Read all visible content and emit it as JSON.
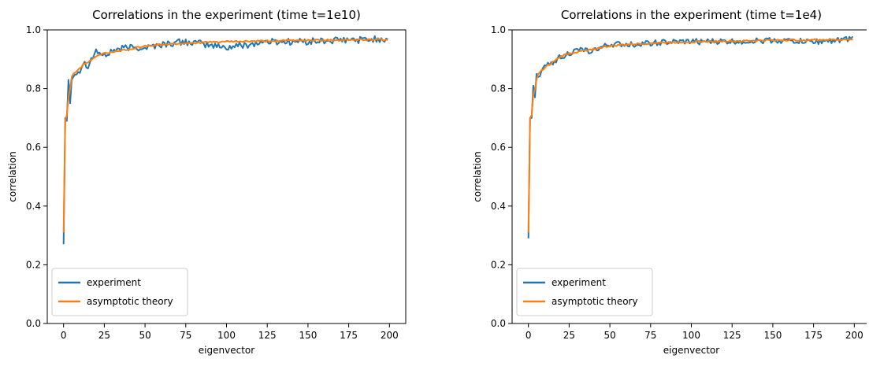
{
  "chart_data": [
    {
      "type": "line",
      "title": "Correlations in the experiment (time t=1e10)",
      "xlabel": "eigenvector",
      "ylabel": "correlation",
      "xlim": [
        -10,
        210
      ],
      "ylim": [
        0.0,
        1.0
      ],
      "xticks": [
        "0",
        "25",
        "50",
        "75",
        "100",
        "125",
        "150",
        "175",
        "200"
      ],
      "yticks": [
        "0.0",
        "0.2",
        "0.4",
        "0.6",
        "0.8",
        "1.0"
      ],
      "grid": false,
      "legend_position": "lower-left",
      "series": [
        {
          "name": "experiment",
          "color": "#1f77b4",
          "noise": 0.012,
          "start": 0.27
        },
        {
          "name": "asymptotic theory",
          "color": "#ff7f0e",
          "noise": 0.0,
          "start": 0.31
        }
      ],
      "x": [
        0,
        1,
        2,
        3,
        4,
        5,
        6,
        8,
        10,
        12,
        15,
        20,
        25,
        30,
        40,
        50,
        60,
        75,
        100,
        125,
        150,
        175,
        199
      ],
      "values_theory": [
        0.31,
        0.69,
        0.71,
        0.77,
        0.8,
        0.84,
        0.85,
        0.86,
        0.87,
        0.88,
        0.89,
        0.91,
        0.92,
        0.925,
        0.935,
        0.945,
        0.95,
        0.955,
        0.96,
        0.962,
        0.965,
        0.966,
        0.967
      ],
      "values_experiment": [
        0.27,
        0.7,
        0.69,
        0.83,
        0.75,
        0.83,
        0.84,
        0.86,
        0.86,
        0.89,
        0.88,
        0.93,
        0.91,
        0.93,
        0.94,
        0.94,
        0.95,
        0.96,
        0.94,
        0.96,
        0.96,
        0.965,
        0.97
      ]
    },
    {
      "type": "line",
      "title": "Correlations in the experiment (time t=1e4)",
      "xlabel": "eigenvector",
      "ylabel": "correlation",
      "xlim": [
        -10,
        210
      ],
      "ylim": [
        0.0,
        1.0
      ],
      "xticks": [
        "0",
        "25",
        "50",
        "75",
        "100",
        "125",
        "150",
        "175",
        "200"
      ],
      "yticks": [
        "0.0",
        "0.2",
        "0.4",
        "0.6",
        "0.8",
        "1.0"
      ],
      "grid": false,
      "legend_position": "lower-left",
      "series": [
        {
          "name": "experiment",
          "color": "#1f77b4",
          "noise": 0.01,
          "start": 0.29
        },
        {
          "name": "asymptotic theory",
          "color": "#ff7f0e",
          "noise": 0.0,
          "start": 0.31
        }
      ],
      "x": [
        0,
        1,
        2,
        3,
        4,
        5,
        6,
        8,
        10,
        12,
        15,
        20,
        25,
        30,
        40,
        50,
        60,
        75,
        100,
        125,
        150,
        175,
        199
      ],
      "values_theory": [
        0.31,
        0.7,
        0.71,
        0.78,
        0.8,
        0.83,
        0.85,
        0.86,
        0.87,
        0.88,
        0.89,
        0.91,
        0.92,
        0.925,
        0.935,
        0.945,
        0.95,
        0.955,
        0.96,
        0.962,
        0.965,
        0.966,
        0.967
      ],
      "values_experiment": [
        0.29,
        0.7,
        0.7,
        0.81,
        0.77,
        0.85,
        0.84,
        0.86,
        0.87,
        0.88,
        0.89,
        0.91,
        0.92,
        0.93,
        0.93,
        0.95,
        0.95,
        0.955,
        0.96,
        0.96,
        0.965,
        0.96,
        0.97
      ]
    }
  ]
}
